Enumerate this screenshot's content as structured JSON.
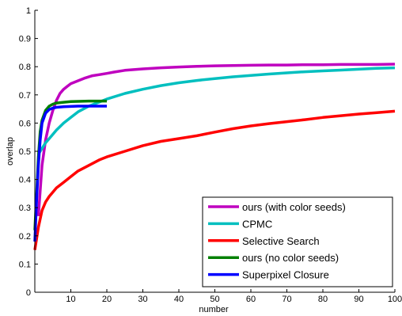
{
  "chart_data": {
    "type": "line",
    "title": "",
    "xlabel": "number",
    "ylabel": "overlap",
    "xlim": [
      0,
      100
    ],
    "ylim": [
      0,
      1
    ],
    "xticks": [
      10,
      20,
      30,
      40,
      50,
      60,
      70,
      80,
      90,
      100
    ],
    "yticks": [
      0,
      0.1,
      0.2,
      0.3,
      0.4,
      0.5,
      0.6,
      0.7,
      0.8,
      0.9,
      1
    ],
    "xtick_labels": [
      "10",
      "20",
      "30",
      "40",
      "50",
      "60",
      "70",
      "80",
      "90",
      "100"
    ],
    "ytick_labels": [
      "0",
      "0.1",
      "0.2",
      "0.3",
      "0.4",
      "0.5",
      "0.6",
      "0.7",
      "0.8",
      "0.9",
      "1"
    ],
    "grid": false,
    "legend_position": "bottom-right",
    "series": [
      {
        "name": "ours (with color seeds)",
        "color": "#bf00bf",
        "x": [
          1,
          2,
          3,
          4,
          5,
          6,
          7,
          8,
          9,
          10,
          12,
          14,
          16,
          18,
          20,
          22,
          25,
          30,
          35,
          40,
          45,
          50,
          55,
          60,
          65,
          70,
          75,
          80,
          85,
          90,
          95,
          100
        ],
        "y": [
          0.27,
          0.45,
          0.54,
          0.6,
          0.645,
          0.68,
          0.705,
          0.72,
          0.73,
          0.74,
          0.75,
          0.76,
          0.768,
          0.772,
          0.776,
          0.781,
          0.787,
          0.792,
          0.796,
          0.799,
          0.801,
          0.803,
          0.804,
          0.805,
          0.806,
          0.806,
          0.807,
          0.807,
          0.808,
          0.808,
          0.808,
          0.809
        ]
      },
      {
        "name": "CPMC",
        "color": "#00bfbf",
        "x": [
          1,
          2,
          3,
          4,
          5,
          6,
          8,
          10,
          12,
          15,
          18,
          20,
          25,
          30,
          35,
          40,
          45,
          50,
          55,
          60,
          65,
          70,
          75,
          80,
          85,
          90,
          95,
          100
        ],
        "y": [
          0.49,
          0.51,
          0.53,
          0.545,
          0.56,
          0.575,
          0.6,
          0.62,
          0.64,
          0.66,
          0.675,
          0.685,
          0.705,
          0.72,
          0.733,
          0.743,
          0.751,
          0.758,
          0.764,
          0.769,
          0.774,
          0.778,
          0.782,
          0.785,
          0.788,
          0.791,
          0.794,
          0.796
        ]
      },
      {
        "name": "Selective Search",
        "color": "#ff0000",
        "x": [
          0,
          1,
          2,
          3,
          4,
          5,
          6,
          8,
          10,
          12,
          15,
          18,
          20,
          25,
          30,
          35,
          40,
          45,
          50,
          55,
          60,
          65,
          70,
          75,
          80,
          85,
          90,
          95,
          100
        ],
        "y": [
          0.15,
          0.23,
          0.29,
          0.32,
          0.34,
          0.355,
          0.37,
          0.39,
          0.41,
          0.43,
          0.45,
          0.47,
          0.48,
          0.5,
          0.52,
          0.535,
          0.545,
          0.555,
          0.568,
          0.58,
          0.59,
          0.598,
          0.605,
          0.612,
          0.62,
          0.626,
          0.632,
          0.637,
          0.642
        ]
      },
      {
        "name": "ours (no color seeds)",
        "color": "#007f00",
        "x": [
          0,
          0.5,
          1,
          1.5,
          2,
          3,
          4,
          5,
          6,
          8,
          10,
          12,
          15,
          18,
          20
        ],
        "y": [
          0.22,
          0.35,
          0.48,
          0.57,
          0.61,
          0.645,
          0.66,
          0.667,
          0.671,
          0.674,
          0.676,
          0.677,
          0.678,
          0.678,
          0.678
        ]
      },
      {
        "name": "Superpixel Closure",
        "color": "#0000ff",
        "x": [
          0,
          0.5,
          1,
          1.5,
          2,
          3,
          4,
          5,
          6,
          8,
          10,
          12,
          15,
          18,
          20
        ],
        "y": [
          0.18,
          0.33,
          0.45,
          0.54,
          0.6,
          0.635,
          0.648,
          0.653,
          0.656,
          0.658,
          0.659,
          0.66,
          0.66,
          0.66,
          0.66
        ]
      }
    ]
  }
}
